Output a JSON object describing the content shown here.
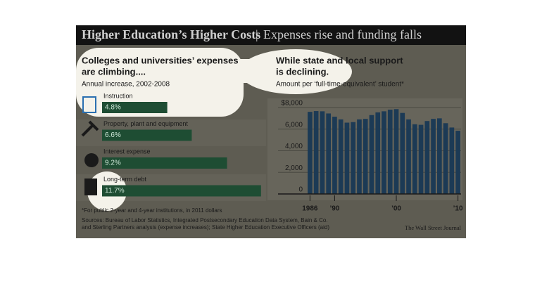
{
  "header": {
    "title": "Higher Education’s Higher Costs",
    "separator": "|",
    "subtitle": "Expenses rise and funding falls"
  },
  "chart_data": [
    {
      "type": "hbar",
      "title": [
        "Colleges and universities’ expenses",
        "are climbing...."
      ],
      "subtitle": "Annual increase, 2002-2008",
      "categories": [
        "Instruction",
        "Property, plant and equipment",
        "Interest expense",
        "Long-term debt"
      ],
      "values": [
        4.8,
        6.6,
        9.2,
        11.7
      ],
      "value_labels": [
        "4.8%",
        "6.6%",
        "9.2%",
        "11.7%"
      ],
      "color": "#1e4d33"
    },
    {
      "type": "bar",
      "title": [
        "While state and local support",
        "is declining."
      ],
      "subtitle": "Amount per ‘full-time-equivalent’ student*",
      "categories": [
        "1986",
        null,
        null,
        null,
        "’90",
        null,
        null,
        null,
        null,
        null,
        null,
        null,
        null,
        null,
        "’00",
        null,
        null,
        null,
        null,
        null,
        null,
        null,
        null,
        null,
        "’10"
      ],
      "values": [
        7600,
        7670,
        7650,
        7450,
        7150,
        6900,
        6600,
        6650,
        6900,
        6950,
        7300,
        7550,
        7650,
        7800,
        7850,
        7500,
        6900,
        6450,
        6400,
        6750,
        6950,
        7000,
        6550,
        6150,
        5850
      ],
      "color": "#1c3a55",
      "ylim": [
        0,
        8000
      ],
      "yticks": [
        0,
        {
          "value": 2000,
          "label": "2,000"
        },
        {
          "value": 4000,
          "label": "4,000"
        },
        {
          "value": 6000,
          "label": "6,000"
        },
        {
          "value": 8000,
          "label": "$8,000"
        }
      ],
      "grid": true
    }
  ],
  "footnote": "*For public 2-year and 4-year institutions, in 2011 dollars",
  "sources": [
    "Sources: Bureau of Labor Statistics, Integrated Postsecondary Education Data System, Bain & Co.",
    "and Sterling Partners analysis (expense increases); State Higher Education Executive Officers (aid)"
  ],
  "credit": "The Wall Street Journal"
}
